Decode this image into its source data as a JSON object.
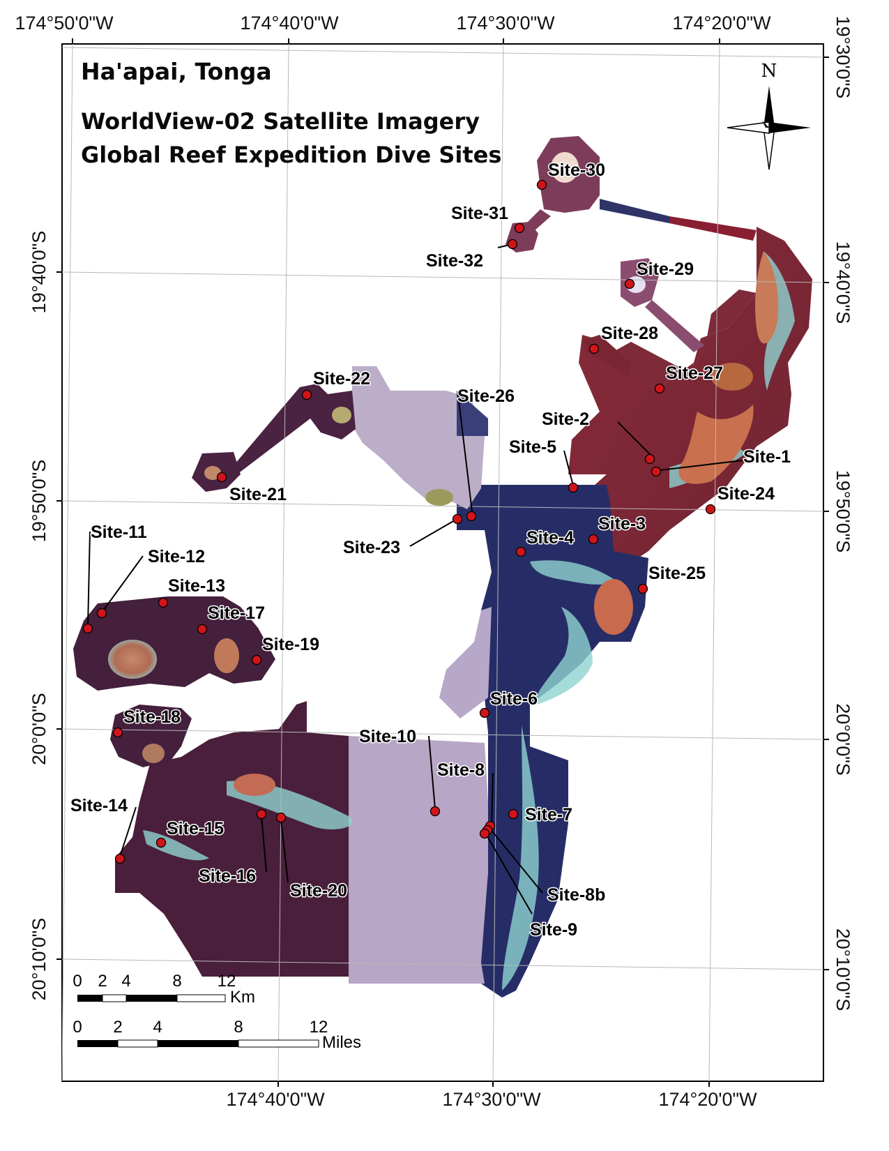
{
  "map": {
    "title": "Ha'apai, Tonga",
    "subtitle_line1": "WorldView-02 Satellite Imagery",
    "subtitle_line2": "Global Reef Expedition Dive Sites",
    "north_label": "N",
    "longitude_labels": [
      "174°50'0\"W",
      "174°40'0\"W",
      "174°30'0\"W",
      "174°20'0\"W"
    ],
    "latitude_labels": [
      "19°30'0\"S",
      "19°40'0\"S",
      "19°50'0\"S",
      "20°0'0\"S",
      "20°10'0\"S"
    ],
    "scale_km": {
      "ticks": [
        "0",
        "2",
        "4",
        "8",
        "12"
      ],
      "unit": "Km"
    },
    "scale_miles": {
      "ticks": [
        "0",
        "2",
        "4",
        "8",
        "12"
      ],
      "unit": "Miles"
    },
    "sites": [
      "Site-1",
      "Site-2",
      "Site-3",
      "Site-4",
      "Site-5",
      "Site-6",
      "Site-7",
      "Site-8",
      "Site-8b",
      "Site-9",
      "Site-10",
      "Site-11",
      "Site-12",
      "Site-13",
      "Site-14",
      "Site-15",
      "Site-16",
      "Site-17",
      "Site-18",
      "Site-19",
      "Site-20",
      "Site-21",
      "Site-22",
      "Site-23",
      "Site-24",
      "Site-25",
      "Site-26",
      "Site-27",
      "Site-28",
      "Site-29",
      "Site-30",
      "Site-31",
      "Site-32"
    ],
    "colors": {
      "maroon_reef": "#7a2a35",
      "dark_plum": "#3e1c34",
      "deep_navy": "#26306a",
      "lavender": "#b9a8c8",
      "site_marker": "#d0151a"
    }
  }
}
